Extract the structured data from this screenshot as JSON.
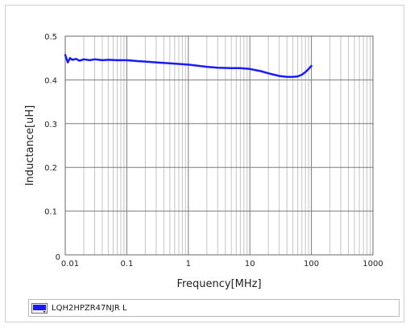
{
  "chart_data": {
    "type": "line",
    "xscale": "log",
    "xlim": [
      0.01,
      1000
    ],
    "ylim": [
      0,
      0.5
    ],
    "xlabel": "Frequency[MHz]",
    "ylabel": "Inductance[uH]",
    "x_tick_labels": [
      "0.01",
      "0.1",
      "1",
      "10",
      "100",
      "1000"
    ],
    "y_tick_labels": [
      "0",
      "0.1",
      "0.2",
      "0.3",
      "0.4",
      "0.5"
    ],
    "grid": true,
    "legend_position": "bottom",
    "series": [
      {
        "name": "LQH2HPZR47NJR  L",
        "color": "#1a1aff",
        "x": [
          0.01,
          0.011,
          0.012,
          0.013,
          0.015,
          0.017,
          0.02,
          0.025,
          0.03,
          0.04,
          0.05,
          0.07,
          0.1,
          0.15,
          0.2,
          0.3,
          0.5,
          1,
          2,
          3,
          5,
          7,
          10,
          15,
          20,
          30,
          40,
          50,
          60,
          70,
          80,
          90,
          100
        ],
        "values": [
          0.457,
          0.44,
          0.45,
          0.446,
          0.448,
          0.444,
          0.447,
          0.445,
          0.447,
          0.445,
          0.446,
          0.445,
          0.445,
          0.443,
          0.442,
          0.44,
          0.438,
          0.435,
          0.43,
          0.428,
          0.427,
          0.427,
          0.425,
          0.42,
          0.415,
          0.409,
          0.407,
          0.407,
          0.408,
          0.412,
          0.418,
          0.425,
          0.432
        ]
      }
    ]
  },
  "legend": {
    "label": "LQH2HPZR47NJR  L",
    "swatch_color": "#1a1aff"
  }
}
